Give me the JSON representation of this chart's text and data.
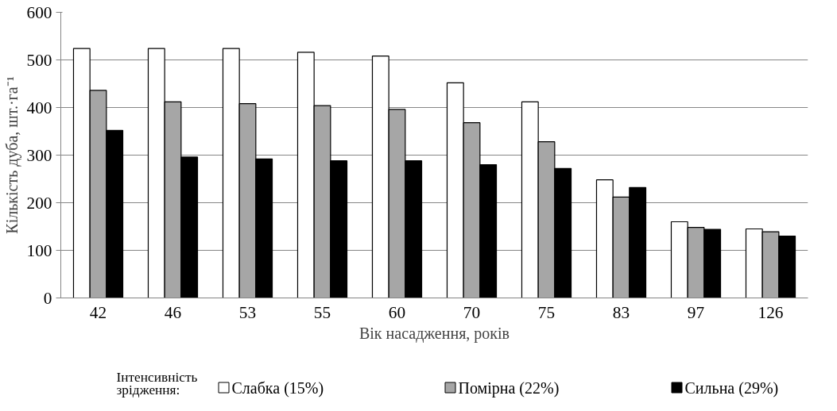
{
  "chart_data": {
    "type": "bar",
    "xlabel": "Вік насадження, років",
    "ylabel": "Кількість дуба, шт.·га⁻¹",
    "legend_title": "Інтенсивність зрідження:",
    "categories": [
      "42",
      "46",
      "53",
      "55",
      "60",
      "70",
      "75",
      "83",
      "97",
      "126"
    ],
    "series": [
      {
        "name": "Слабка (15%)",
        "color": "#ffffff",
        "values": [
          524,
          524,
          524,
          516,
          508,
          452,
          412,
          248,
          160,
          145
        ]
      },
      {
        "name": "Помірна (22%)",
        "color": "#a6a6a6",
        "values": [
          436,
          412,
          408,
          404,
          396,
          368,
          328,
          212,
          148,
          139
        ]
      },
      {
        "name": "Сильна (29%)",
        "color": "#000000",
        "values": [
          352,
          296,
          292,
          288,
          288,
          280,
          272,
          232,
          144,
          130
        ]
      }
    ],
    "ylim": [
      0,
      600
    ],
    "yticks": [
      0,
      100,
      200,
      300,
      400,
      500,
      600
    ],
    "grid": "y",
    "legend": "bottom"
  }
}
